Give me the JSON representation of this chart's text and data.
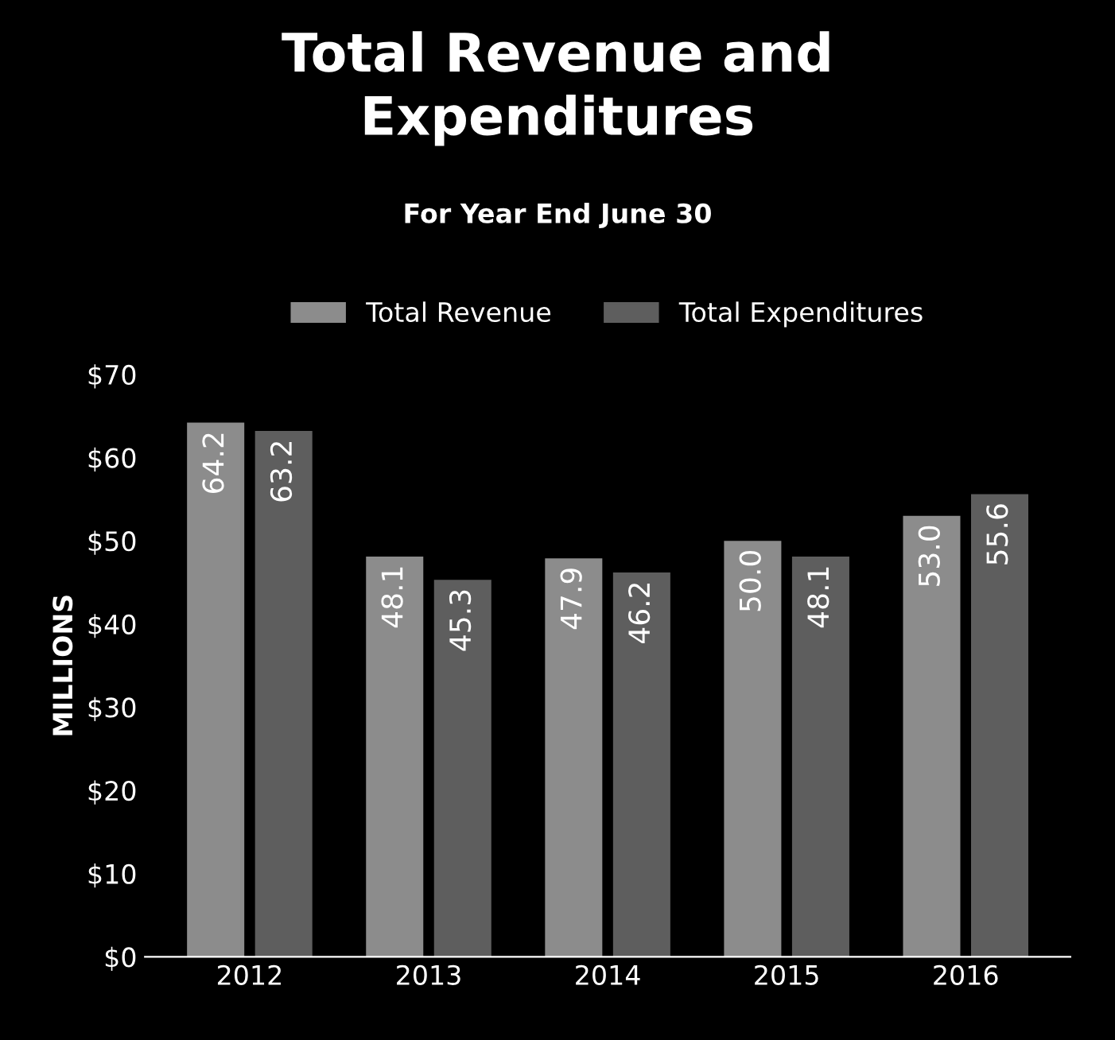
{
  "chart_data": {
    "type": "bar",
    "title": "Total Revenue and\nExpenditures",
    "subtitle": "For Year End June 30",
    "ylabel": "MILLIONS",
    "categories": [
      "2012",
      "2013",
      "2014",
      "2015",
      "2016"
    ],
    "series": [
      {
        "name": "Total Revenue",
        "color": "#8c8c8c",
        "values": [
          64.2,
          48.1,
          47.9,
          50.0,
          53.0
        ],
        "value_labels": [
          "64.2",
          "48.1",
          "47.9",
          "50.0",
          "53.0"
        ]
      },
      {
        "name": "Total Expenditures",
        "color": "#5e5e5e",
        "values": [
          63.2,
          45.3,
          46.2,
          48.1,
          55.6
        ],
        "value_labels": [
          "63.2",
          "45.3",
          "46.2",
          "48.1",
          "55.6"
        ]
      }
    ],
    "ylim": [
      0,
      70
    ],
    "yticks": [
      {
        "value": 0,
        "label": "$0"
      },
      {
        "value": 10,
        "label": "$10"
      },
      {
        "value": 20,
        "label": "$20"
      },
      {
        "value": 30,
        "label": "$30"
      },
      {
        "value": 40,
        "label": "$40"
      },
      {
        "value": 50,
        "label": "$50"
      },
      {
        "value": 60,
        "label": "$60"
      },
      {
        "value": 70,
        "label": "$70"
      }
    ],
    "legend": "top",
    "grid": false
  }
}
